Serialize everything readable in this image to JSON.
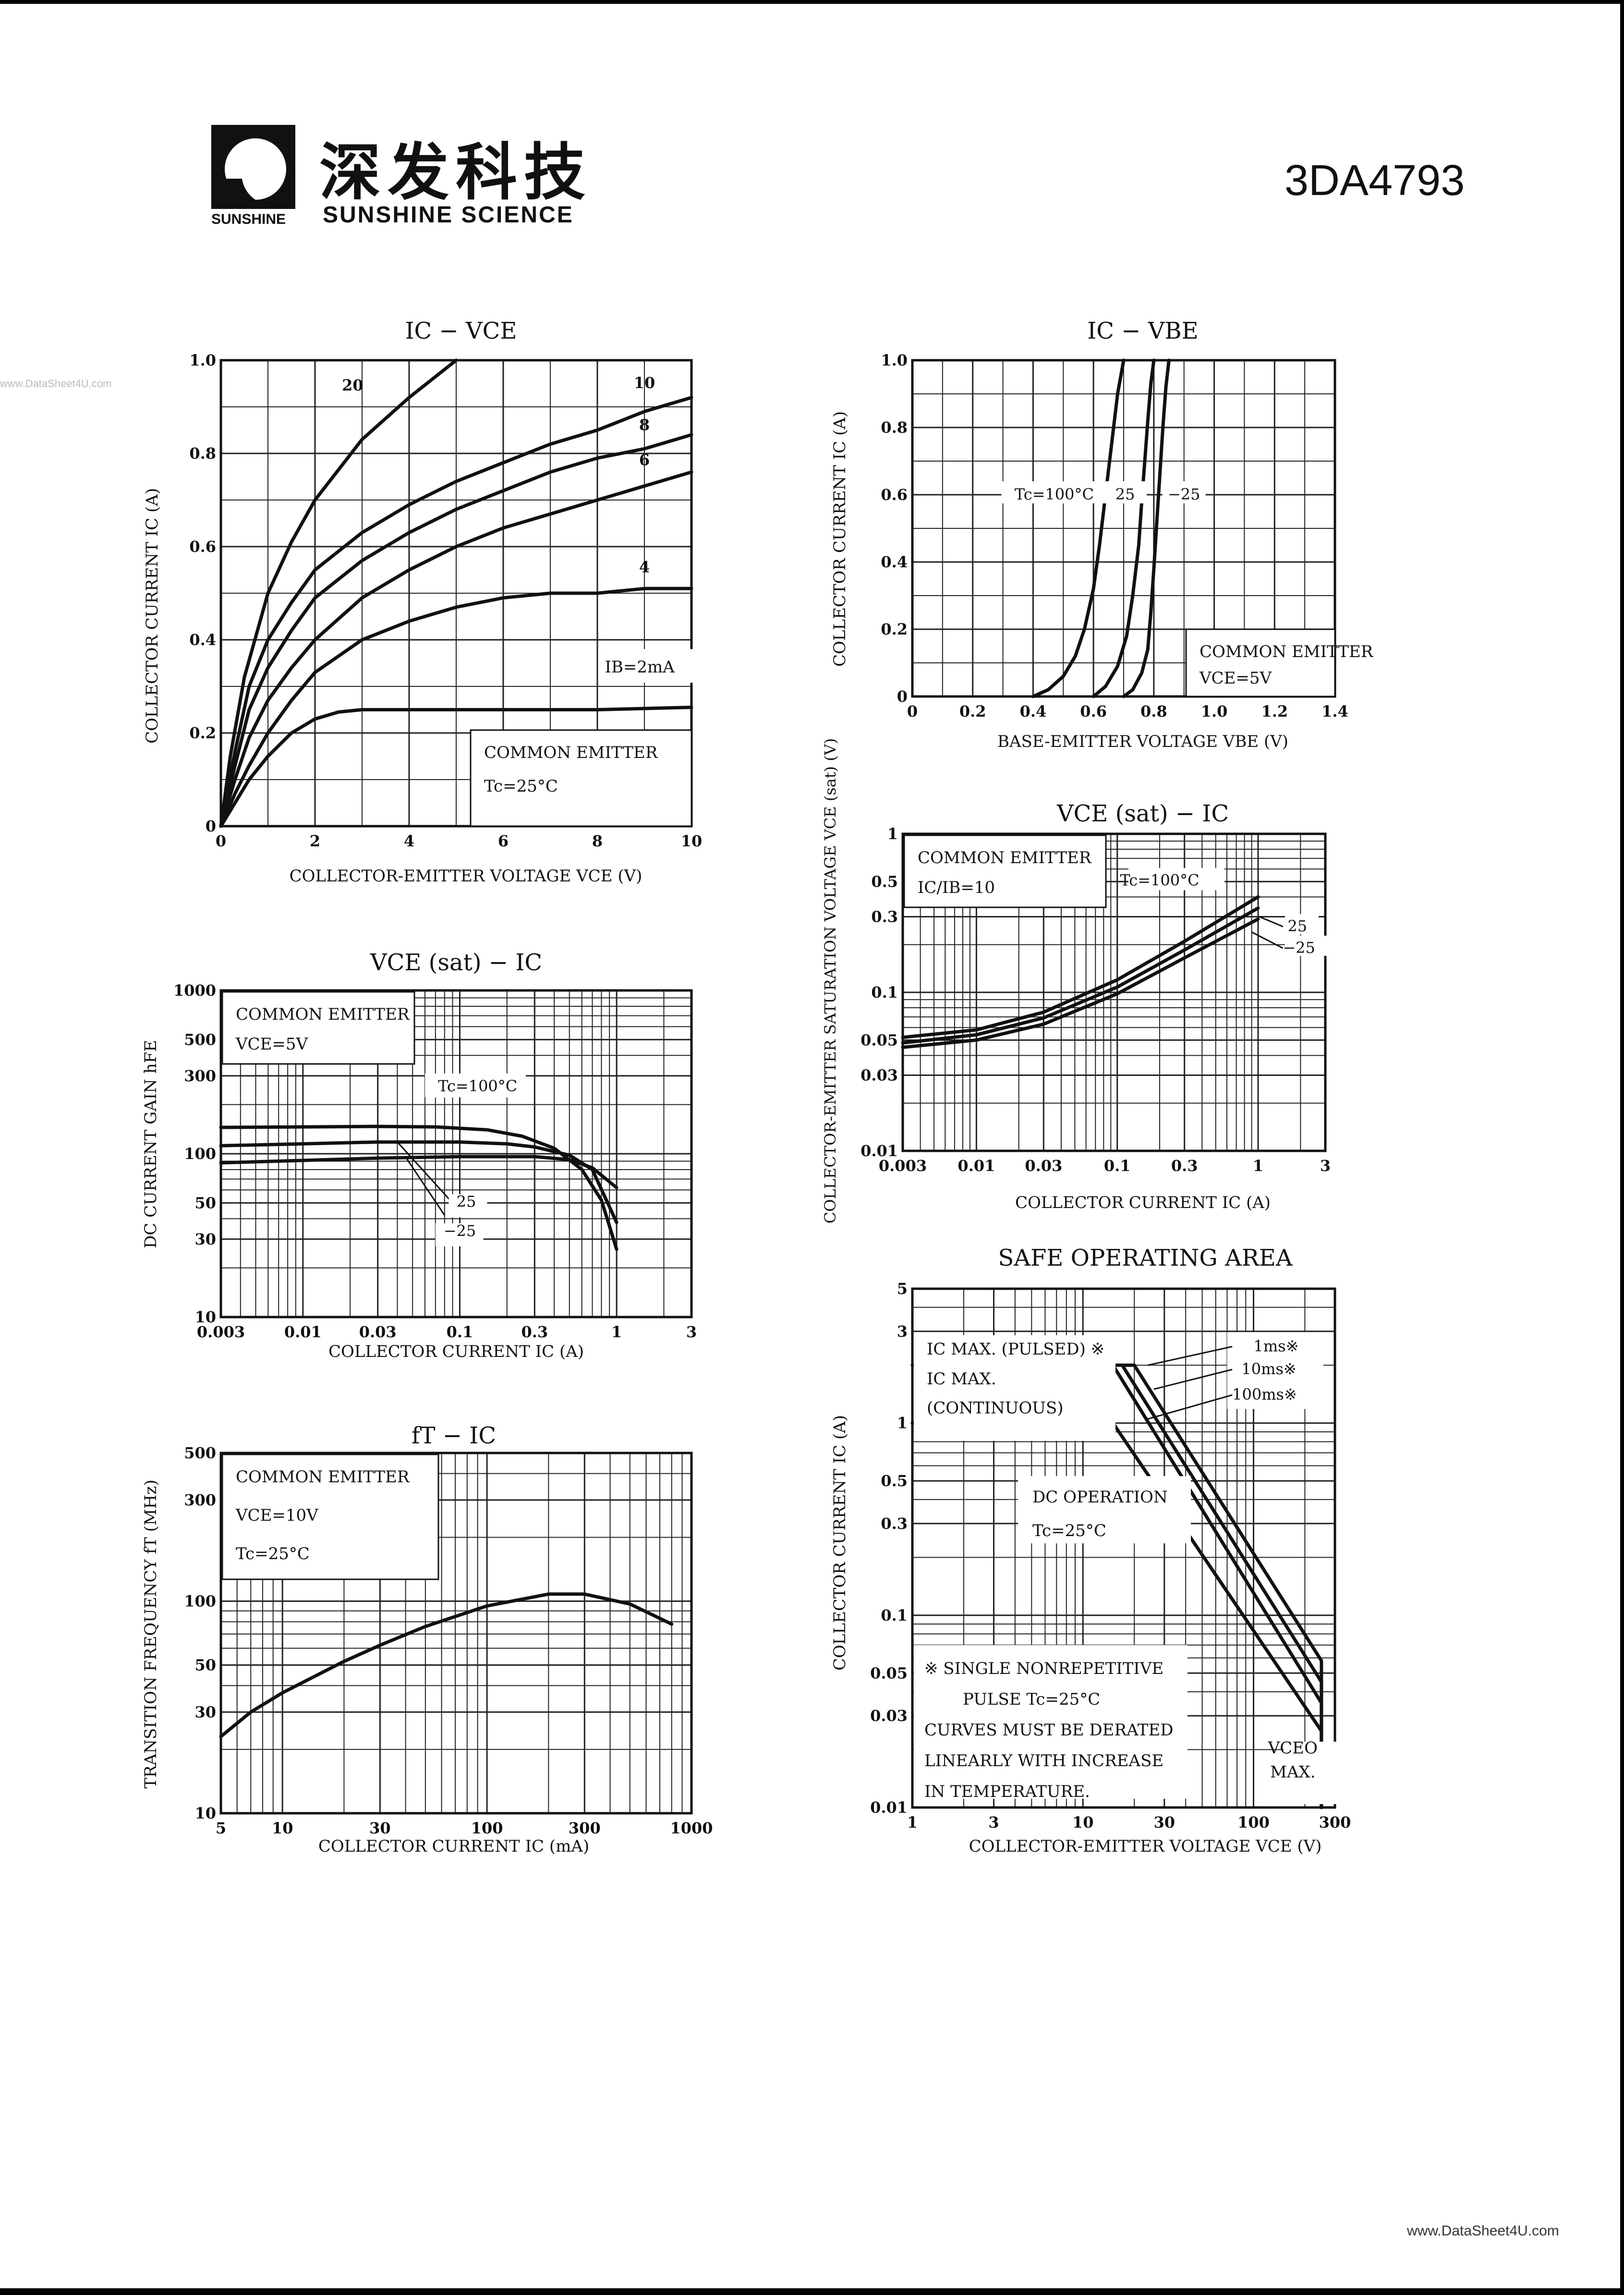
{
  "header": {
    "logo_cn": "深发科技",
    "logo_en": "SUNSHINE SCIENCE",
    "logo_sub": "SUNSHINE",
    "part_number": "3DA4793"
  },
  "watermarks": {
    "top": "www.DataSheet4U.com",
    "bottom": "www.DataSheet4U.com"
  },
  "colors": {
    "ink": "#111111",
    "grid": "#222222",
    "paper": "#ffffff"
  },
  "chart_data": [
    {
      "id": "ic-vce",
      "type": "line",
      "title": "IC − VCE",
      "xlabel": "COLLECTOR-EMITTER VOLTAGE VCE (V)",
      "ylabel": "COLLECTOR CURRENT IC (A)",
      "xscale": "linear",
      "yscale": "linear",
      "xlim": [
        0,
        10
      ],
      "ylim": [
        0,
        1.0
      ],
      "xticks": [
        0,
        2,
        4,
        6,
        8,
        10
      ],
      "xtick_labels": [
        "0",
        "2",
        "4",
        "6",
        "8",
        "10"
      ],
      "yticks": [
        0,
        0.2,
        0.4,
        0.6,
        0.8,
        1.0
      ],
      "ytick_labels": [
        "0",
        "0.2",
        "0.4",
        "0.6",
        "0.8",
        "1.0"
      ],
      "xgrid": [
        0,
        1,
        2,
        3,
        4,
        5,
        6,
        7,
        8,
        9,
        10
      ],
      "ygrid": [
        0,
        0.1,
        0.2,
        0.3,
        0.4,
        0.5,
        0.6,
        0.7,
        0.8,
        0.9,
        1.0
      ],
      "legend_box": {
        "lines": [
          "COMMON EMITTER",
          "Tc=25°C"
        ],
        "position": "bottom-right"
      },
      "annotations": [
        "IB=2mA"
      ],
      "series": [
        {
          "name": "20",
          "x": [
            0,
            0.2,
            0.5,
            1,
            1.5,
            2,
            3,
            4,
            5
          ],
          "y": [
            0,
            0.15,
            0.32,
            0.5,
            0.61,
            0.7,
            0.83,
            0.92,
            1.0
          ]
        },
        {
          "name": "10",
          "x": [
            0,
            0.3,
            0.6,
            1,
            1.5,
            2,
            3,
            4,
            5,
            6,
            7,
            8,
            9,
            10
          ],
          "y": [
            0,
            0.16,
            0.3,
            0.4,
            0.48,
            0.55,
            0.63,
            0.69,
            0.74,
            0.78,
            0.82,
            0.85,
            0.89,
            0.92
          ]
        },
        {
          "name": "8",
          "x": [
            0,
            0.3,
            0.6,
            1,
            1.5,
            2,
            3,
            4,
            5,
            6,
            7,
            8,
            9,
            10
          ],
          "y": [
            0,
            0.13,
            0.25,
            0.34,
            0.42,
            0.49,
            0.57,
            0.63,
            0.68,
            0.72,
            0.76,
            0.79,
            0.81,
            0.84
          ]
        },
        {
          "name": "6",
          "x": [
            0,
            0.3,
            0.6,
            1,
            1.5,
            2,
            3,
            4,
            5,
            6,
            7,
            8,
            9,
            10
          ],
          "y": [
            0,
            0.1,
            0.19,
            0.27,
            0.34,
            0.4,
            0.49,
            0.55,
            0.6,
            0.64,
            0.67,
            0.7,
            0.73,
            0.76
          ]
        },
        {
          "name": "4",
          "x": [
            0,
            0.3,
            0.6,
            1,
            1.5,
            2,
            3,
            4,
            5,
            6,
            7,
            8,
            9,
            10
          ],
          "y": [
            0,
            0.07,
            0.13,
            0.2,
            0.27,
            0.33,
            0.4,
            0.44,
            0.47,
            0.49,
            0.5,
            0.5,
            0.51,
            0.51
          ]
        },
        {
          "name": "IB=2mA",
          "x": [
            0,
            0.3,
            0.6,
            1,
            1.5,
            2,
            2.5,
            3,
            4,
            6,
            8,
            10
          ],
          "y": [
            0,
            0.05,
            0.1,
            0.15,
            0.2,
            0.23,
            0.245,
            0.25,
            0.25,
            0.25,
            0.25,
            0.255
          ]
        }
      ]
    },
    {
      "id": "ic-vbe",
      "type": "line",
      "title": "IC − VBE",
      "xlabel": "BASE-EMITTER VOLTAGE VBE (V)",
      "ylabel": "COLLECTOR CURRENT IC (A)",
      "xscale": "linear",
      "yscale": "linear",
      "xlim": [
        0,
        1.4
      ],
      "ylim": [
        0,
        1.0
      ],
      "xticks": [
        0,
        0.2,
        0.4,
        0.6,
        0.8,
        1.0,
        1.2,
        1.4
      ],
      "xtick_labels": [
        "0",
        "0.2",
        "0.4",
        "0.6",
        "0.8",
        "1.0",
        "1.2",
        "1.4"
      ],
      "yticks": [
        0,
        0.2,
        0.4,
        0.6,
        0.8,
        1.0
      ],
      "ytick_labels": [
        "0",
        "0.2",
        "0.4",
        "0.6",
        "0.8",
        "1.0"
      ],
      "xgrid": [
        0,
        0.1,
        0.2,
        0.3,
        0.4,
        0.5,
        0.6,
        0.7,
        0.8,
        0.9,
        1.0,
        1.1,
        1.2,
        1.3,
        1.4
      ],
      "ygrid": [
        0,
        0.1,
        0.2,
        0.3,
        0.4,
        0.5,
        0.6,
        0.7,
        0.8,
        0.9,
        1.0
      ],
      "legend_box": {
        "lines": [
          "COMMON EMITTER",
          "VCE=5V"
        ],
        "position": "bottom-right"
      },
      "annotations": [
        "Tc=100°C",
        "25",
        "−25"
      ],
      "series": [
        {
          "name": "Tc=100°C",
          "x": [
            0.4,
            0.45,
            0.5,
            0.54,
            0.57,
            0.6,
            0.62,
            0.64,
            0.66,
            0.68,
            0.7
          ],
          "y": [
            0,
            0.02,
            0.06,
            0.12,
            0.2,
            0.32,
            0.45,
            0.6,
            0.75,
            0.9,
            1.0
          ]
        },
        {
          "name": "25",
          "x": [
            0.6,
            0.64,
            0.68,
            0.71,
            0.73,
            0.75,
            0.76,
            0.77,
            0.78,
            0.79,
            0.8
          ],
          "y": [
            0,
            0.03,
            0.09,
            0.18,
            0.3,
            0.45,
            0.58,
            0.7,
            0.82,
            0.93,
            1.0
          ]
        },
        {
          "name": "−25",
          "x": [
            0.7,
            0.73,
            0.76,
            0.78,
            0.79,
            0.8,
            0.81,
            0.82,
            0.83,
            0.84,
            0.85
          ],
          "y": [
            0,
            0.02,
            0.07,
            0.14,
            0.25,
            0.38,
            0.52,
            0.66,
            0.8,
            0.92,
            1.0
          ]
        }
      ]
    },
    {
      "id": "hfe-ic",
      "type": "line",
      "title": "VCE (sat) − IC",
      "xlabel": "COLLECTOR CURRENT IC (A)",
      "ylabel": "DC CURRENT GAIN hFE",
      "xscale": "log",
      "yscale": "log",
      "xlim": [
        0.003,
        3
      ],
      "ylim": [
        10,
        1000
      ],
      "xticks": [
        0.003,
        0.01,
        0.03,
        0.1,
        0.3,
        1,
        3
      ],
      "xtick_labels": [
        "0.003",
        "0.01",
        "0.03",
        "0.1",
        "0.3",
        "1",
        "3"
      ],
      "yticks": [
        10,
        30,
        50,
        100,
        300,
        500,
        1000
      ],
      "ytick_labels": [
        "10",
        "30",
        "50",
        "100",
        "300",
        "500",
        "1000"
      ],
      "xgrid": [
        0.003,
        0.004,
        0.005,
        0.006,
        0.007,
        0.008,
        0.009,
        0.01,
        0.02,
        0.03,
        0.04,
        0.05,
        0.06,
        0.07,
        0.08,
        0.09,
        0.1,
        0.2,
        0.3,
        0.4,
        0.5,
        0.6,
        0.7,
        0.8,
        0.9,
        1,
        2,
        3
      ],
      "ygrid": [
        10,
        20,
        30,
        40,
        50,
        60,
        70,
        80,
        90,
        100,
        200,
        300,
        400,
        500,
        600,
        700,
        800,
        900,
        1000
      ],
      "legend_box": {
        "lines": [
          "COMMON EMITTER",
          "VCE=5V"
        ],
        "position": "top-left"
      },
      "annotations": [
        "Tc=100°C",
        "25",
        "−25"
      ],
      "series": [
        {
          "name": "Tc=100°C",
          "x": [
            0.003,
            0.01,
            0.03,
            0.07,
            0.15,
            0.25,
            0.4,
            0.6,
            0.8,
            1
          ],
          "y": [
            145,
            146,
            147,
            146,
            140,
            128,
            108,
            80,
            52,
            26
          ]
        },
        {
          "name": "25",
          "x": [
            0.003,
            0.01,
            0.03,
            0.1,
            0.2,
            0.3,
            0.5,
            0.7,
            1
          ],
          "y": [
            112,
            115,
            118,
            118,
            115,
            110,
            98,
            80,
            38
          ]
        },
        {
          "name": "−25",
          "x": [
            0.003,
            0.01,
            0.03,
            0.1,
            0.3,
            0.5,
            0.7,
            1
          ],
          "y": [
            88,
            91,
            94,
            96,
            96,
            92,
            82,
            62
          ]
        }
      ]
    },
    {
      "id": "vcesat-ic",
      "type": "line",
      "title": "VCE (sat) − IC",
      "xlabel": "COLLECTOR CURRENT IC (A)",
      "ylabel": "COLLECTOR-EMITTER SATURATION VOLTAGE VCE (sat) (V)",
      "xscale": "log",
      "yscale": "log",
      "xlim": [
        0.003,
        3
      ],
      "ylim": [
        0.01,
        1
      ],
      "xticks": [
        0.003,
        0.01,
        0.03,
        0.1,
        0.3,
        1,
        3
      ],
      "xtick_labels": [
        "0.003",
        "0.01",
        "0.03",
        "0.1",
        "0.3",
        "1",
        "3"
      ],
      "yticks": [
        0.01,
        0.03,
        0.05,
        0.1,
        0.3,
        0.5,
        1
      ],
      "ytick_labels": [
        "0.01",
        "0.03",
        "0.05",
        "0.1",
        "0.3",
        "0.5",
        "1"
      ],
      "xgrid": [
        0.003,
        0.004,
        0.005,
        0.006,
        0.007,
        0.008,
        0.009,
        0.01,
        0.02,
        0.03,
        0.04,
        0.05,
        0.06,
        0.07,
        0.08,
        0.09,
        0.1,
        0.2,
        0.3,
        0.4,
        0.5,
        0.6,
        0.7,
        0.8,
        0.9,
        1,
        2,
        3
      ],
      "ygrid": [
        0.01,
        0.02,
        0.03,
        0.04,
        0.05,
        0.06,
        0.07,
        0.08,
        0.09,
        0.1,
        0.2,
        0.3,
        0.4,
        0.5,
        0.6,
        0.7,
        0.8,
        0.9,
        1
      ],
      "legend_box": {
        "lines": [
          "COMMON EMITTER",
          "IC/IB=10"
        ],
        "position": "top-left"
      },
      "annotations": [
        "Tc=100°C",
        "25",
        "−25"
      ],
      "series": [
        {
          "name": "Tc=100°C",
          "x": [
            0.003,
            0.01,
            0.03,
            0.1,
            0.3,
            1
          ],
          "y": [
            0.052,
            0.058,
            0.075,
            0.12,
            0.21,
            0.4
          ]
        },
        {
          "name": "25",
          "x": [
            0.003,
            0.01,
            0.03,
            0.1,
            0.3,
            1
          ],
          "y": [
            0.048,
            0.054,
            0.069,
            0.108,
            0.185,
            0.34
          ]
        },
        {
          "name": "−25",
          "x": [
            0.003,
            0.01,
            0.03,
            0.1,
            0.3,
            1
          ],
          "y": [
            0.045,
            0.05,
            0.063,
            0.098,
            0.165,
            0.29
          ]
        }
      ]
    },
    {
      "id": "ft-ic",
      "type": "line",
      "title": "fT − IC",
      "xlabel": "COLLECTOR CURRENT IC (mA)",
      "ylabel": "TRANSITION FREQUENCY fT (MHz)",
      "xscale": "log",
      "yscale": "log",
      "xlim": [
        5,
        1000
      ],
      "ylim": [
        10,
        500
      ],
      "xticks": [
        5,
        10,
        30,
        100,
        300,
        1000
      ],
      "xtick_labels": [
        "5",
        "10",
        "30",
        "100",
        "300",
        "1000"
      ],
      "yticks": [
        10,
        30,
        50,
        100,
        300,
        500
      ],
      "ytick_labels": [
        "10",
        "30",
        "50",
        "100",
        "300",
        "500"
      ],
      "xgrid": [
        5,
        6,
        7,
        8,
        9,
        10,
        20,
        30,
        40,
        50,
        60,
        70,
        80,
        90,
        100,
        200,
        300,
        400,
        500,
        600,
        700,
        800,
        900,
        1000
      ],
      "ygrid": [
        10,
        20,
        30,
        40,
        50,
        60,
        70,
        80,
        90,
        100,
        200,
        300,
        400,
        500
      ],
      "legend_box": {
        "lines": [
          "COMMON EMITTER",
          "VCE=10V",
          "Tc=25°C"
        ],
        "position": "top-left"
      },
      "annotations": [],
      "series": [
        {
          "name": "fT",
          "x": [
            5,
            7,
            10,
            20,
            30,
            50,
            100,
            200,
            300,
            500,
            800
          ],
          "y": [
            23,
            30,
            37,
            52,
            62,
            76,
            95,
            108,
            108,
            97,
            78
          ]
        }
      ]
    },
    {
      "id": "soa",
      "type": "line",
      "title": "SAFE OPERATING AREA",
      "xlabel": "COLLECTOR-EMITTER VOLTAGE VCE (V)",
      "ylabel": "COLLECTOR CURRENT IC (A)",
      "xscale": "log",
      "yscale": "log",
      "xlim": [
        1,
        300
      ],
      "ylim": [
        0.01,
        5
      ],
      "xticks": [
        1,
        3,
        10,
        30,
        100,
        300
      ],
      "xtick_labels": [
        "1",
        "3",
        "10",
        "30",
        "100",
        "300"
      ],
      "yticks": [
        0.01,
        0.03,
        0.05,
        0.1,
        0.3,
        0.5,
        1,
        3,
        5
      ],
      "ytick_labels": [
        "0.01",
        "0.03",
        "0.05",
        "0.1",
        "0.3",
        "0.5",
        "1",
        "3",
        "5"
      ],
      "xgrid": [
        1,
        2,
        3,
        4,
        5,
        6,
        7,
        8,
        9,
        10,
        20,
        30,
        40,
        50,
        60,
        70,
        80,
        90,
        100,
        200,
        300
      ],
      "ygrid": [
        0.01,
        0.02,
        0.03,
        0.04,
        0.05,
        0.06,
        0.07,
        0.08,
        0.09,
        0.1,
        0.2,
        0.3,
        0.4,
        0.5,
        0.6,
        0.7,
        0.8,
        0.9,
        1,
        2,
        3,
        4,
        5
      ],
      "labels": {
        "ic_pulsed": "IC MAX. (PULSED) ※",
        "ic_cont_1": "IC MAX.",
        "ic_cont_2": "(CONTINUOUS)",
        "dc_1": "DC OPERATION",
        "dc_2": "Tc=25°C",
        "note_1": "※ SINGLE NONREPETITIVE",
        "note_2": "PULSE Tc=25°C",
        "note_3": "CURVES MUST BE DERATED",
        "note_4": "LINEARLY WITH INCREASE",
        "note_5": "IN TEMPERATURE.",
        "vceo_1": "VCEO",
        "vceo_2": "MAX.",
        "ms1": "1ms※",
        "ms10": "10ms※",
        "ms100": "100ms※"
      },
      "series": [
        {
          "name": "IC MAX. (PULSED)",
          "x": [
            1,
            20
          ],
          "y": [
            2,
            2
          ]
        },
        {
          "name": "IC MAX. (CONTINUOUS)",
          "x": [
            1,
            15
          ],
          "y": [
            1,
            1
          ]
        },
        {
          "name": "1ms",
          "x": [
            20,
            250,
            250
          ],
          "y": [
            2,
            0.058,
            0.01
          ]
        },
        {
          "name": "10ms",
          "x": [
            17,
            250,
            250
          ],
          "y": [
            2,
            0.045,
            0.01
          ]
        },
        {
          "name": "100ms",
          "x": [
            15,
            250,
            250
          ],
          "y": [
            2,
            0.035,
            0.01
          ]
        },
        {
          "name": "DC OPERATION",
          "x": [
            15,
            250,
            250
          ],
          "y": [
            1,
            0.025,
            0.01
          ]
        }
      ]
    }
  ]
}
